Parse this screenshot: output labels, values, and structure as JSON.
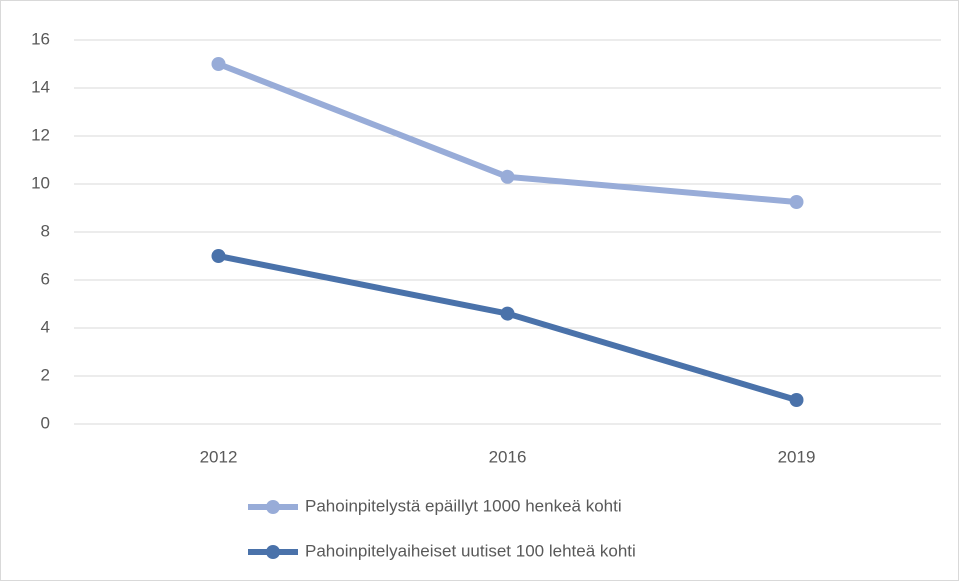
{
  "chart_data": {
    "type": "line",
    "categories": [
      "2012",
      "2016",
      "2019"
    ],
    "series": [
      {
        "name": "Pahoinpitelystä epäillyt 1000 henkeä kohti",
        "color": "#98acd8",
        "values": [
          15,
          10.3,
          9.25
        ]
      },
      {
        "name": "Pahoinpitelyaiheiset uutiset 100 lehteä kohti",
        "color": "#4a72aa",
        "values": [
          7,
          4.6,
          1
        ]
      }
    ],
    "ylim": [
      0,
      16
    ],
    "yticks": [
      0,
      2,
      4,
      6,
      8,
      10,
      12,
      14,
      16
    ],
    "grid": true,
    "legend": "bottom"
  }
}
